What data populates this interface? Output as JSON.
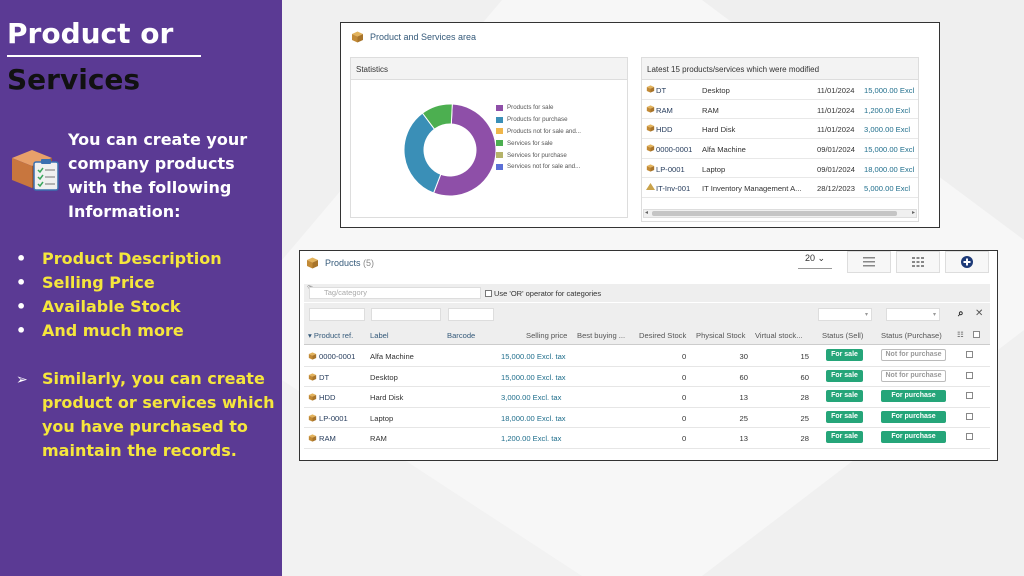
{
  "slide": {
    "title_line1": "Product or",
    "title_line2": "Services",
    "intro": "You can create your company products with the following Information:",
    "bullets": [
      "Product Description",
      "Selling Price",
      "Available Stock",
      "And much more"
    ],
    "similar": "Similarly, you can create product or services which you have purchased to maintain the records.",
    "icon": "box-clipboard-icon",
    "colors": {
      "panel": "#5b3a94",
      "highlight": "#f5e63c"
    }
  },
  "dashboard": {
    "title": "Product and Services area",
    "statistics": {
      "header": "Statistics",
      "legend": [
        {
          "label": "Products for sale",
          "color": "#8e4fa8"
        },
        {
          "label": "Products for purchase",
          "color": "#3a8fb7"
        },
        {
          "label": "Products not for sale and...",
          "color": "#f0b64a"
        },
        {
          "label": "Services for sale",
          "color": "#4caf50"
        },
        {
          "label": "Services for purchase",
          "color": "#b5b36a"
        },
        {
          "label": "Services not for sale and...",
          "color": "#5b6fd6"
        }
      ]
    },
    "latest": {
      "header": "Latest 15 products/services which were modified",
      "rows": [
        {
          "ref": "DT",
          "label": "Desktop",
          "date": "11/01/2024",
          "price": "15,000.00 Excl"
        },
        {
          "ref": "RAM",
          "label": "RAM",
          "date": "11/01/2024",
          "price": "1,200.00 Excl"
        },
        {
          "ref": "HDD",
          "label": "Hard Disk",
          "date": "11/01/2024",
          "price": "3,000.00 Excl"
        },
        {
          "ref": "0000-0001",
          "label": "Alfa Machine",
          "date": "09/01/2024",
          "price": "15,000.00 Excl"
        },
        {
          "ref": "LP-0001",
          "label": "Laptop",
          "date": "09/01/2024",
          "price": "18,000.00 Excl"
        },
        {
          "ref": "IT-Inv-001",
          "label": "IT Inventory Management A...",
          "date": "28/12/2023",
          "price": "5,000.00 Excl"
        }
      ]
    }
  },
  "chart_data": {
    "type": "pie",
    "categories": [
      "Products for sale",
      "Products for purchase",
      "Services for sale"
    ],
    "values": [
      55,
      34,
      11
    ]
  },
  "products": {
    "title": "Products",
    "count": "(5)",
    "per_page": "20",
    "tag_placeholder": "Tag/category",
    "or_label": "Use 'OR' operator for categories",
    "columns": [
      "Product ref.",
      "Label",
      "Barcode",
      "Selling price",
      "Best buying ...",
      "Desired Stock",
      "Physical Stock",
      "Virtual stock...",
      "Status (Sell)",
      "Status (Purchase)"
    ],
    "rows": [
      {
        "ref": "0000-0001",
        "label": "Alfa Machine",
        "price": "15,000.00 Excl. tax",
        "desired": "0",
        "physical": "30",
        "virtual": "15",
        "sell": "For sale",
        "purchase": "Not for purchase",
        "purchase_on": false
      },
      {
        "ref": "DT",
        "label": "Desktop",
        "price": "15,000.00 Excl. tax",
        "desired": "0",
        "physical": "60",
        "virtual": "60",
        "sell": "For sale",
        "purchase": "Not for purchase",
        "purchase_on": false
      },
      {
        "ref": "HDD",
        "label": "Hard Disk",
        "price": "3,000.00 Excl. tax",
        "desired": "0",
        "physical": "13",
        "virtual": "28",
        "sell": "For sale",
        "purchase": "For purchase",
        "purchase_on": true
      },
      {
        "ref": "LP-0001",
        "label": "Laptop",
        "price": "18,000.00 Excl. tax",
        "desired": "0",
        "physical": "25",
        "virtual": "25",
        "sell": "For sale",
        "purchase": "For purchase",
        "purchase_on": true
      },
      {
        "ref": "RAM",
        "label": "RAM",
        "price": "1,200.00 Excl. tax",
        "desired": "0",
        "physical": "13",
        "virtual": "28",
        "sell": "For sale",
        "purchase": "For purchase",
        "purchase_on": true
      }
    ]
  }
}
